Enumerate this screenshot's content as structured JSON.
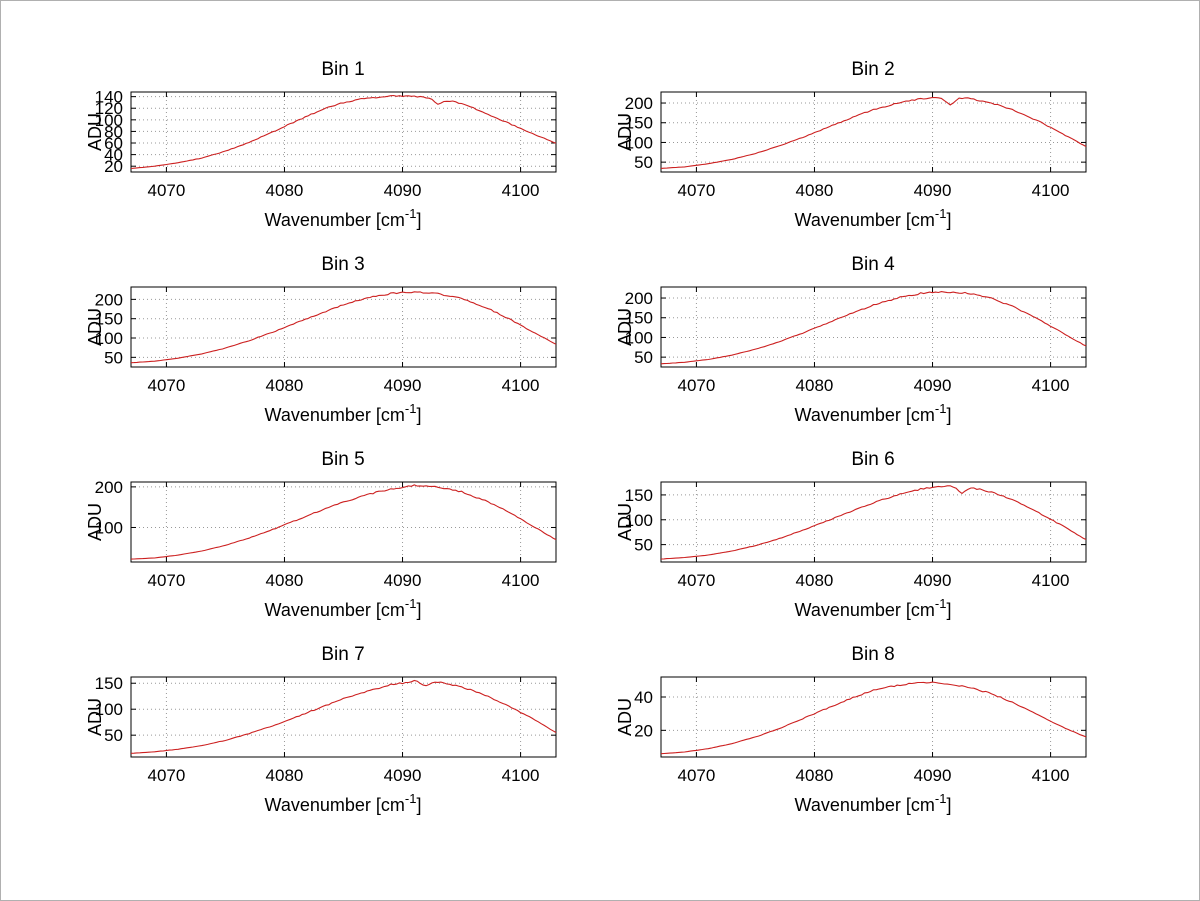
{
  "figure": {
    "background": "#ffffff",
    "description": "4x2 grid of spectral line profiles per detector bin"
  },
  "chart_data": {
    "type": "line",
    "layout": "8 subplots, 4 rows x 2 columns",
    "curve_color": "#cc2020",
    "grid": true,
    "ylabel": "ADU",
    "xlabel": {
      "prefix": "Wavenumber [cm",
      "sup": "-1",
      "suffix": "]"
    },
    "xlim": [
      4067,
      4103
    ],
    "x_ticks": [
      4070,
      4080,
      4090,
      4100
    ],
    "x": [
      4067,
      4069,
      4071,
      4073,
      4075,
      4077,
      4079,
      4081,
      4083,
      4085,
      4087,
      4089,
      4091,
      4093,
      4095,
      4097,
      4099,
      4101,
      4103
    ],
    "subplots": [
      {
        "title": "Bin 1",
        "ylim": [
          10,
          148
        ],
        "y_ticks": [
          20,
          40,
          60,
          80,
          100,
          120,
          140
        ],
        "values": [
          16,
          20,
          26,
          34,
          46,
          61,
          79,
          98,
          116,
          130,
          138,
          141,
          140,
          137,
          128,
          112,
          94,
          76,
          60
        ],
        "dips": [
          {
            "x": 4093,
            "depth": 9
          }
        ]
      },
      {
        "title": "Bin 2",
        "ylim": [
          25,
          228
        ],
        "y_ticks": [
          50,
          100,
          150,
          200
        ],
        "values": [
          34,
          38,
          46,
          57,
          72,
          91,
          113,
          137,
          161,
          183,
          200,
          211,
          215,
          212,
          200,
          180,
          154,
          122,
          90
        ],
        "dips": [
          {
            "x": 4091.5,
            "depth": 20
          }
        ]
      },
      {
        "title": "Bin 3",
        "ylim": [
          25,
          232
        ],
        "y_ticks": [
          50,
          100,
          150,
          200
        ],
        "values": [
          36,
          40,
          48,
          59,
          74,
          93,
          115,
          139,
          163,
          186,
          204,
          215,
          219,
          215,
          202,
          180,
          150,
          116,
          84
        ],
        "dips": []
      },
      {
        "title": "Bin 4",
        "ylim": [
          25,
          228
        ],
        "y_ticks": [
          50,
          100,
          150,
          200
        ],
        "values": [
          33,
          37,
          44,
          55,
          70,
          89,
          111,
          135,
          159,
          182,
          200,
          212,
          216,
          212,
          199,
          176,
          146,
          112,
          78
        ],
        "dips": []
      },
      {
        "title": "Bin 5",
        "ylim": [
          15,
          212
        ],
        "y_ticks": [
          100,
          200
        ],
        "values": [
          22,
          25,
          32,
          42,
          56,
          74,
          95,
          118,
          141,
          163,
          181,
          195,
          203,
          200,
          188,
          166,
          138,
          104,
          70
        ],
        "dips": []
      },
      {
        "title": "Bin 6",
        "ylim": [
          15,
          176
        ],
        "y_ticks": [
          50,
          100,
          150
        ],
        "values": [
          21,
          24,
          29,
          37,
          48,
          62,
          79,
          97,
          116,
          134,
          150,
          162,
          168,
          166,
          156,
          138,
          114,
          88,
          60
        ],
        "dips": [
          {
            "x": 4092.5,
            "depth": 12
          }
        ]
      },
      {
        "title": "Bin 7",
        "ylim": [
          8,
          162
        ],
        "y_ticks": [
          50,
          100,
          150
        ],
        "values": [
          15,
          18,
          23,
          30,
          40,
          53,
          68,
          85,
          103,
          120,
          135,
          147,
          154,
          152,
          143,
          127,
          106,
          82,
          55
        ],
        "dips": [
          {
            "x": 4092,
            "depth": 8
          }
        ]
      },
      {
        "title": "Bin 8",
        "ylim": [
          4,
          52
        ],
        "y_ticks": [
          20,
          40
        ],
        "values": [
          6,
          7,
          9,
          12,
          16,
          21,
          27,
          33,
          39,
          44,
          47,
          49,
          48,
          46,
          42,
          36,
          29,
          22,
          16
        ],
        "dips": []
      }
    ]
  }
}
